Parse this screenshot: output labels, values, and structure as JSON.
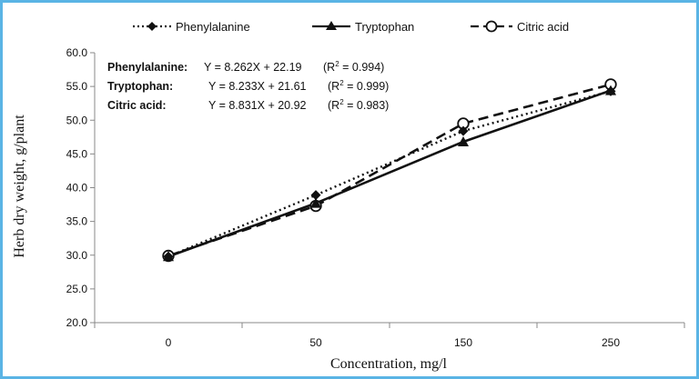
{
  "chart_data": {
    "type": "line",
    "categories": [
      "0",
      "50",
      "150",
      "250"
    ],
    "xlabel": "Concentration, mg/l",
    "ylabel": "Herb dry weight, g/plant",
    "ylim": [
      20.0,
      60.0
    ],
    "yticks": [
      "20.0",
      "25.0",
      "30.0",
      "35.0",
      "40.0",
      "45.0",
      "50.0",
      "55.0",
      "60.0"
    ],
    "grid": false,
    "legend_position": "top",
    "series": [
      {
        "name": "Phenylalanine",
        "values": [
          29.8,
          38.9,
          48.4,
          54.3
        ],
        "color": "#111111",
        "style": "dotted",
        "marker": "diamond"
      },
      {
        "name": "Tryptophan",
        "values": [
          29.8,
          37.7,
          46.8,
          54.4
        ],
        "color": "#111111",
        "style": "solid",
        "marker": "triangle"
      },
      {
        "name": "Citric acid",
        "values": [
          29.9,
          37.3,
          49.5,
          55.3
        ],
        "color": "#111111",
        "style": "dashed",
        "marker": "circle-open"
      }
    ],
    "equations": [
      {
        "name": "Phenylalanine:",
        "formula": "Y = 8.262X + 22.19",
        "r2_open": "(R",
        "r2_sup": "2",
        "r2_close": " = 0.994)"
      },
      {
        "name": "Tryptophan:",
        "formula": "Y = 8.233X + 21.61",
        "r2_open": "(R",
        "r2_sup": "2",
        "r2_close": " = 0.999)"
      },
      {
        "name": "Citric acid:",
        "formula": "Y = 8.831X + 20.92",
        "r2_open": "(R",
        "r2_sup": "2",
        "r2_close": " = 0.983)"
      }
    ]
  },
  "frame_color": "#5ab4e5"
}
